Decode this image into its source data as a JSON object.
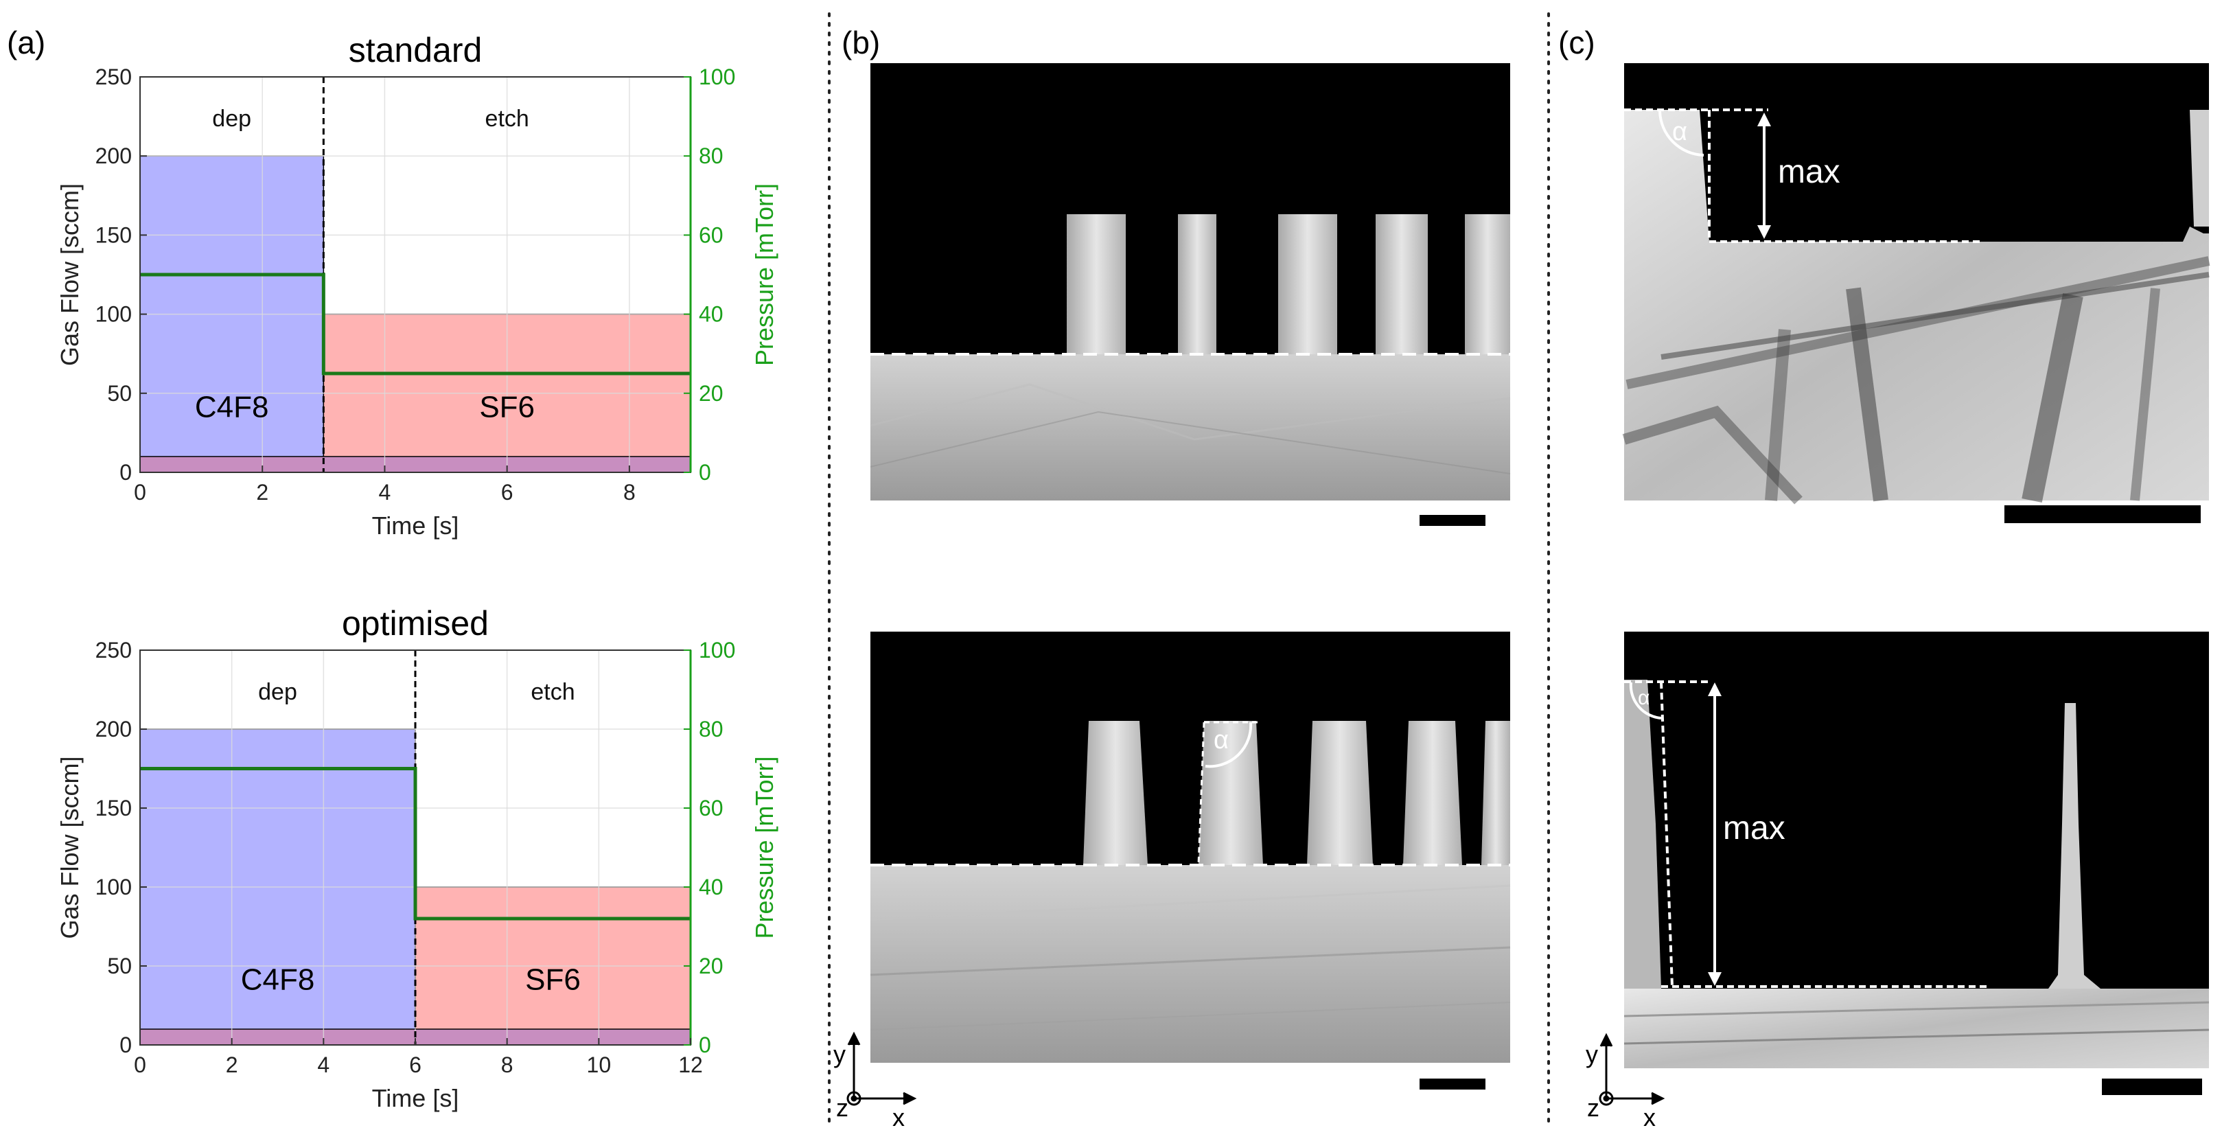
{
  "panel_labels": {
    "a": "(a)",
    "b": "(b)",
    "c": "(c)"
  },
  "colors": {
    "deposition_fill": "#b3b3ff",
    "etch_fill": "#ffb3b3",
    "base_fill": "#c88ec0",
    "pressure_line": "#1a7a1a",
    "pressure_axis": "#1aa01a",
    "grid": "#dcdcdc"
  },
  "chart_data": [
    {
      "type": "area",
      "title": "standard",
      "xlabel": "Time [s]",
      "ylabel": "Gas Flow [sccm]",
      "y2label": "Pressure [mTorr]",
      "xlim": [
        0,
        9
      ],
      "ylim": [
        0,
        250
      ],
      "y2lim": [
        0,
        100
      ],
      "xticks": [
        0,
        2,
        4,
        6,
        8
      ],
      "yticks": [
        0,
        50,
        100,
        150,
        200,
        250
      ],
      "y2ticks": [
        0,
        20,
        40,
        60,
        80,
        100
      ],
      "grid": true,
      "phase_boundary": 3,
      "phase_labels": [
        "dep",
        "etch"
      ],
      "series": [
        {
          "name": "C4F8",
          "x_range": [
            0,
            3
          ],
          "value": 200
        },
        {
          "name": "SF6",
          "x_range": [
            3,
            9
          ],
          "value": 100
        },
        {
          "x_range": [
            0,
            9
          ],
          "value": 10
        }
      ],
      "pressure": [
        {
          "x_range": [
            0,
            3
          ],
          "value": 50
        },
        {
          "x_range": [
            3,
            9
          ],
          "value": 25
        }
      ]
    },
    {
      "type": "area",
      "title": "optimised",
      "xlabel": "Time [s]",
      "ylabel": "Gas Flow [sccm]",
      "y2label": "Pressure [mTorr]",
      "xlim": [
        0,
        12
      ],
      "ylim": [
        0,
        250
      ],
      "y2lim": [
        0,
        100
      ],
      "xticks": [
        0,
        2,
        4,
        6,
        8,
        10,
        12
      ],
      "yticks": [
        0,
        50,
        100,
        150,
        200,
        250
      ],
      "y2ticks": [
        0,
        20,
        40,
        60,
        80,
        100
      ],
      "grid": true,
      "phase_boundary": 6,
      "phase_labels": [
        "dep",
        "etch"
      ],
      "series": [
        {
          "name": "C4F8",
          "x_range": [
            0,
            6
          ],
          "value": 200
        },
        {
          "name": "SF6",
          "x_range": [
            6,
            12
          ],
          "value": 100
        },
        {
          "x_range": [
            0,
            12
          ],
          "value": 10
        }
      ],
      "pressure": [
        {
          "x_range": [
            0,
            6
          ],
          "value": 70
        },
        {
          "x_range": [
            6,
            12
          ],
          "value": 32
        }
      ]
    }
  ],
  "micrographs": {
    "alpha": "α",
    "max": "max",
    "axis_y": "y",
    "axis_z": "z",
    "axis_x": "x"
  }
}
